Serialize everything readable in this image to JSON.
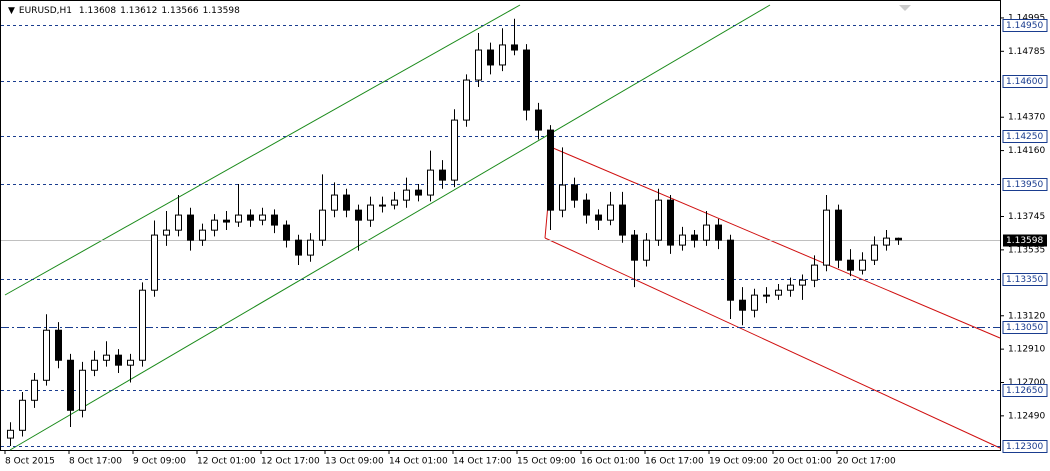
{
  "chart_data": {
    "type": "candlestick",
    "symbol": "EURUSD,H1",
    "ohlc": [
      1.13608,
      1.13612,
      1.13566,
      1.13598
    ],
    "candles": [
      [
        1.1235,
        1.1245,
        1.123,
        1.12399
      ],
      [
        1.12399,
        1.1264,
        1.1236,
        1.12588
      ],
      [
        1.12588,
        1.1276,
        1.1254,
        1.12714
      ],
      [
        1.12714,
        1.1313,
        1.1268,
        1.13029
      ],
      [
        1.13029,
        1.1308,
        1.1279,
        1.1284
      ],
      [
        1.1284,
        1.1288,
        1.1242,
        1.12525
      ],
      [
        1.12525,
        1.1283,
        1.1248,
        1.12777
      ],
      [
        1.12777,
        1.129,
        1.1274,
        1.1284
      ],
      [
        1.1284,
        1.1296,
        1.128,
        1.12872
      ],
      [
        1.12872,
        1.1291,
        1.1276,
        1.12809
      ],
      [
        1.12809,
        1.1288,
        1.127,
        1.1284
      ],
      [
        1.1284,
        1.1333,
        1.128,
        1.13281
      ],
      [
        1.13281,
        1.1372,
        1.1324,
        1.13628
      ],
      [
        1.13628,
        1.1378,
        1.1356,
        1.13659
      ],
      [
        1.13659,
        1.1388,
        1.1362,
        1.13754
      ],
      [
        1.13754,
        1.138,
        1.1353,
        1.13596
      ],
      [
        1.13596,
        1.137,
        1.1356,
        1.13659
      ],
      [
        1.13659,
        1.1376,
        1.1362,
        1.13722
      ],
      [
        1.13722,
        1.1378,
        1.1366,
        1.1371
      ],
      [
        1.1371,
        1.1395,
        1.1368,
        1.13754
      ],
      [
        1.13754,
        1.1379,
        1.1368,
        1.13722
      ],
      [
        1.13722,
        1.138,
        1.1369,
        1.13754
      ],
      [
        1.13754,
        1.1379,
        1.1364,
        1.13691
      ],
      [
        1.13691,
        1.1372,
        1.1355,
        1.13596
      ],
      [
        1.13596,
        1.1363,
        1.1344,
        1.13502
      ],
      [
        1.13502,
        1.1364,
        1.1346,
        1.13596
      ],
      [
        1.13596,
        1.1401,
        1.1356,
        1.13785
      ],
      [
        1.13785,
        1.1396,
        1.1374,
        1.1388
      ],
      [
        1.1388,
        1.1392,
        1.1374,
        1.13785
      ],
      [
        1.13785,
        1.1382,
        1.1353,
        1.13722
      ],
      [
        1.13722,
        1.1387,
        1.1368,
        1.13817
      ],
      [
        1.13817,
        1.1387,
        1.1377,
        1.13817
      ],
      [
        1.13817,
        1.139,
        1.1379,
        1.13848
      ],
      [
        1.13848,
        1.1399,
        1.138,
        1.13911
      ],
      [
        1.13911,
        1.1395,
        1.1384,
        1.1388
      ],
      [
        1.1388,
        1.1416,
        1.1384,
        1.14037
      ],
      [
        1.14037,
        1.141,
        1.1392,
        1.13974
      ],
      [
        1.13974,
        1.1442,
        1.1393,
        1.14352
      ],
      [
        1.14352,
        1.1464,
        1.1431,
        1.14604
      ],
      [
        1.14604,
        1.149,
        1.1456,
        1.14793
      ],
      [
        1.14793,
        1.1484,
        1.1464,
        1.14699
      ],
      [
        1.14699,
        1.1493,
        1.1466,
        1.14825
      ],
      [
        1.14825,
        1.1499,
        1.1476,
        1.14793
      ],
      [
        1.14793,
        1.1483,
        1.1435,
        1.14415
      ],
      [
        1.14415,
        1.1446,
        1.1423,
        1.14289
      ],
      [
        1.14289,
        1.1432,
        1.1366,
        1.13785
      ],
      [
        1.13785,
        1.1418,
        1.1374,
        1.13943
      ],
      [
        1.13943,
        1.1399,
        1.138,
        1.13848
      ],
      [
        1.13848,
        1.1389,
        1.137,
        1.13754
      ],
      [
        1.13754,
        1.1379,
        1.1366,
        1.13722
      ],
      [
        1.13722,
        1.139,
        1.1369,
        1.13817
      ],
      [
        1.13817,
        1.139,
        1.1358,
        1.13628
      ],
      [
        1.13628,
        1.1366,
        1.133,
        1.1347
      ],
      [
        1.1347,
        1.1364,
        1.1343,
        1.13596
      ],
      [
        1.13596,
        1.1392,
        1.1356,
        1.13848
      ],
      [
        1.13848,
        1.1388,
        1.1351,
        1.13565
      ],
      [
        1.13565,
        1.1368,
        1.1353,
        1.13628
      ],
      [
        1.13628,
        1.1366,
        1.1355,
        1.13596
      ],
      [
        1.13596,
        1.1378,
        1.1356,
        1.13691
      ],
      [
        1.13691,
        1.1373,
        1.1354,
        1.13596
      ],
      [
        1.13596,
        1.1363,
        1.131,
        1.13218
      ],
      [
        1.13218,
        1.133,
        1.1306,
        1.13155
      ],
      [
        1.13155,
        1.1329,
        1.1311,
        1.1325
      ],
      [
        1.1325,
        1.133,
        1.132,
        1.1325
      ],
      [
        1.1325,
        1.1332,
        1.1322,
        1.13281
      ],
      [
        1.13281,
        1.1336,
        1.1324,
        1.13313
      ],
      [
        1.13313,
        1.1338,
        1.1322,
        1.13344
      ],
      [
        1.13344,
        1.135,
        1.133,
        1.13439
      ],
      [
        1.13439,
        1.1388,
        1.134,
        1.13785
      ],
      [
        1.13785,
        1.1382,
        1.1342,
        1.1347
      ],
      [
        1.1347,
        1.1354,
        1.1337,
        1.13407
      ],
      [
        1.13407,
        1.1352,
        1.1338,
        1.1347
      ],
      [
        1.1347,
        1.1362,
        1.1344,
        1.13565
      ],
      [
        1.13565,
        1.1366,
        1.1353,
        1.13609
      ],
      [
        1.13608,
        1.13612,
        1.13566,
        1.13598
      ]
    ],
    "ylim": [
      1.12275,
      1.15108
    ],
    "yticks": [
      1.14995,
      {
        "value": 1.14785,
        "label": "1.14785"
      },
      {
        "value": 1.1437,
        "label": "1.14370"
      },
      {
        "value": 1.1416,
        "label": "1.14160"
      },
      1.13745,
      1.13535,
      {
        "value": 1.1312,
        "label": "1.13120"
      },
      {
        "value": 1.1291,
        "label": "1.12910"
      },
      {
        "value": 1.127,
        "label": "1.12700"
      },
      {
        "value": 1.1249,
        "label": "1.12490"
      }
    ],
    "levels": [
      {
        "value": 1.1495,
        "label": "1.14950"
      },
      {
        "value": 1.146,
        "label": "1.14600"
      },
      {
        "value": 1.1425,
        "label": "1.14250"
      },
      {
        "value": 1.1395,
        "label": "1.13950"
      },
      {
        "value": 1.1335,
        "label": "1.13350"
      },
      {
        "value": 1.1305,
        "label": "1.13050"
      },
      {
        "value": 1.1265,
        "label": "1.12650"
      },
      {
        "value": 1.123,
        "label": "1.12300"
      }
    ],
    "current_price": 1.13598,
    "xtick_labels": [
      "8 Oct 2015",
      "8 Oct 17:00",
      "9 Oct 09:00",
      "12 Oct 01:00",
      "12 Oct 17:00",
      "13 Oct 09:00",
      "14 Oct 01:00",
      "14 Oct 17:00",
      "15 Oct 09:00",
      "16 Oct 01:00",
      "16 Oct 17:00",
      "19 Oct 09:00",
      "20 Oct 01:00",
      "20 Oct 17:00"
    ],
    "color_up": "#ffffff",
    "color_down": "#000000",
    "level_color": "#1a3d8f"
  }
}
